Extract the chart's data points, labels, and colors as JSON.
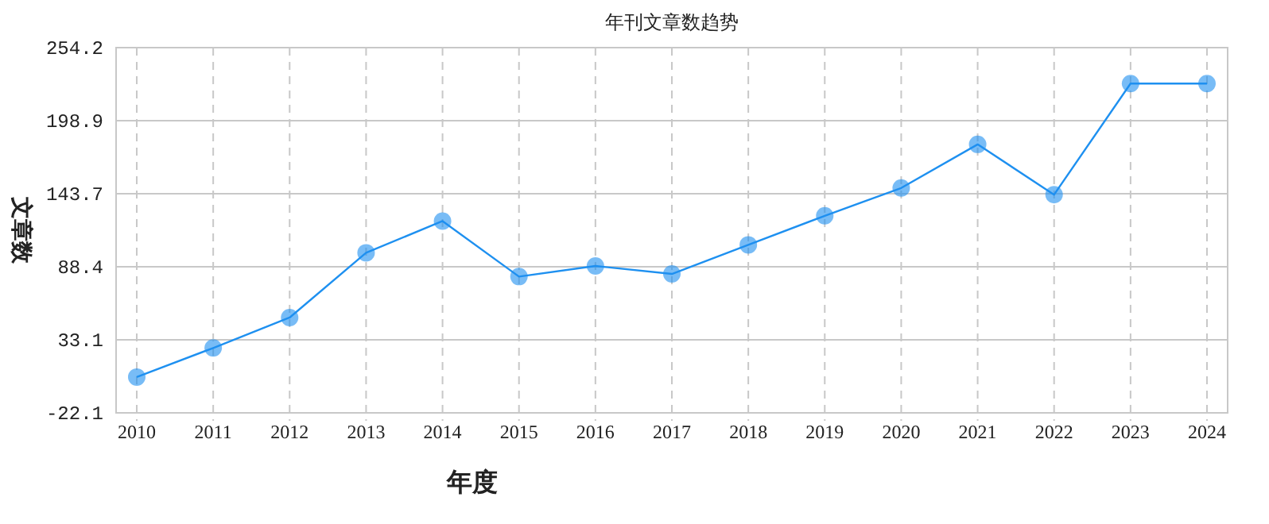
{
  "chart_data": {
    "type": "line",
    "title": "年刊文章数趋势",
    "xlabel": "年度",
    "ylabel": "文章数",
    "categories": [
      "2010",
      "2011",
      "2012",
      "2013",
      "2014",
      "2015",
      "2016",
      "2017",
      "2018",
      "2019",
      "2020",
      "2021",
      "2022",
      "2023",
      "2024"
    ],
    "series": [
      {
        "color": "#1e90f0",
        "values": [
          5,
          27,
          50,
          99,
          123,
          81,
          89,
          83,
          105,
          127,
          148,
          181,
          143,
          227,
          227
        ]
      }
    ],
    "ylim": [
      -22.1,
      254.2
    ],
    "yticks": [
      -22.1,
      33.1,
      88.4,
      143.7,
      198.9,
      254.2
    ],
    "grid": true,
    "marker": "circle",
    "line_style": "solid"
  }
}
